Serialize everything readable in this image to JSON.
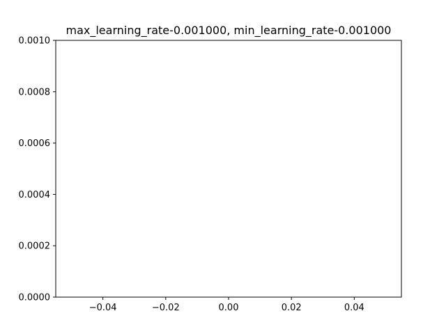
{
  "chart_data": {
    "type": "line",
    "title": "max_learning_rate-0.001000, min_learning_rate-0.001000",
    "xlabel": "",
    "ylabel": "",
    "xlim": [
      -0.055,
      0.055
    ],
    "ylim": [
      0,
      0.001
    ],
    "x_ticks": [
      -0.04,
      -0.02,
      0.0,
      0.02,
      0.04
    ],
    "x_tick_labels": [
      "−0.04",
      "−0.02",
      "0.00",
      "0.02",
      "0.04"
    ],
    "y_ticks": [
      0,
      0.0002,
      0.0004,
      0.0006,
      0.0008,
      0.001
    ],
    "y_tick_labels": [
      "0.0000",
      "0.0002",
      "0.0004",
      "0.0006",
      "0.0008",
      "0.0010"
    ],
    "series": [],
    "grid": false,
    "legend": "none",
    "colors": {
      "axes": "#000000",
      "background": "#ffffff"
    }
  }
}
